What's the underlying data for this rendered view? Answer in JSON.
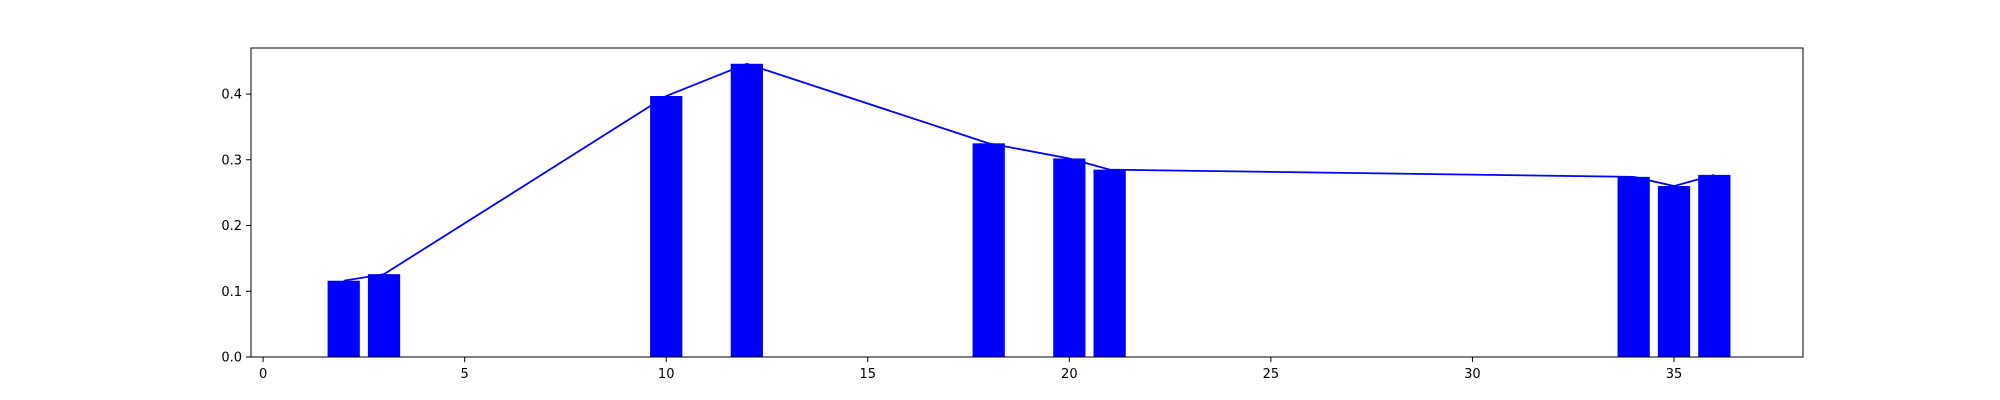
{
  "chart_data": {
    "type": "bar",
    "title": "",
    "xlabel": "",
    "ylabel": "",
    "xlim": [
      -0.3,
      38.2
    ],
    "ylim": [
      0,
      0.47
    ],
    "grid": false,
    "xticks": [
      0,
      5,
      10,
      15,
      20,
      25,
      30,
      35
    ],
    "yticks": [
      0.0,
      0.1,
      0.2,
      0.3,
      0.4
    ],
    "x": [
      2,
      3,
      10,
      12,
      18,
      20,
      21,
      34,
      35,
      36
    ],
    "series": [
      {
        "type": "bar",
        "color": "#0000ff",
        "values": [
          0.116,
          0.126,
          0.397,
          0.446,
          0.325,
          0.302,
          0.285,
          0.274,
          0.26,
          0.277
        ]
      },
      {
        "type": "line",
        "color": "#0000ff",
        "values": [
          0.116,
          0.126,
          0.397,
          0.446,
          0.325,
          0.302,
          0.285,
          0.274,
          0.26,
          0.277
        ]
      }
    ]
  }
}
